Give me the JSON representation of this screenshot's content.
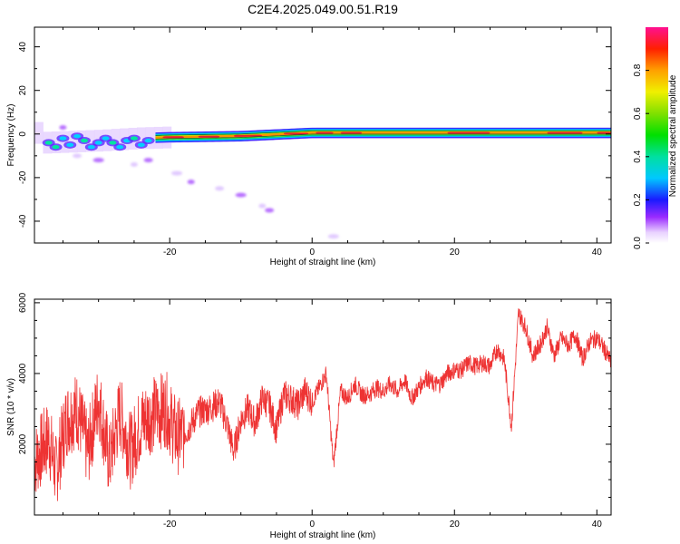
{
  "figure": {
    "title": "C2E4.2025.049.00.51.R19"
  },
  "chart_data": [
    {
      "type": "heatmap",
      "xlabel": "Height of straight line (km)",
      "ylabel": "Frequency (Hz)",
      "xlim": [
        -39,
        42
      ],
      "ylim": [
        -50,
        49
      ],
      "xticks": [
        -20,
        0,
        20,
        40
      ],
      "yticks": [
        -40,
        -20,
        0,
        20,
        40
      ],
      "colorbar": {
        "label": "Normalized spectral amplitude",
        "range": [
          0,
          1
        ],
        "ticks": [
          "0.0",
          "0.2",
          "0.4",
          "0.6",
          "0.8"
        ]
      },
      "ridge": {
        "description_points": [
          {
            "x": -38,
            "y": -4
          },
          {
            "x": -30,
            "y": -3
          },
          {
            "x": -25,
            "y": -2
          },
          {
            "x": -20,
            "y": -1.5
          },
          {
            "x": -10,
            "y": -1
          },
          {
            "x": 0,
            "y": 0.5
          },
          {
            "x": 10,
            "y": 0.5
          },
          {
            "x": 20,
            "y": 0.5
          },
          {
            "x": 30,
            "y": 0.5
          },
          {
            "x": 42,
            "y": 0.5
          }
        ]
      },
      "scattered_blobs": [
        {
          "x": -35,
          "y": 3
        },
        {
          "x": -33,
          "y": -10
        },
        {
          "x": -30,
          "y": -12
        },
        {
          "x": -25,
          "y": -14
        },
        {
          "x": -23,
          "y": -12
        },
        {
          "x": -19,
          "y": -18
        },
        {
          "x": -17,
          "y": -22
        },
        {
          "x": -13,
          "y": -25
        },
        {
          "x": -10,
          "y": -28
        },
        {
          "x": -7,
          "y": -33
        },
        {
          "x": -6,
          "y": -35
        },
        {
          "x": 3,
          "y": -47
        }
      ]
    },
    {
      "type": "line",
      "xlabel": "Height of straight line (km)",
      "ylabel": "SNR (10 * v/v)",
      "xlim": [
        -39,
        42
      ],
      "ylim": [
        0,
        6100
      ],
      "xticks": [
        -20,
        0,
        20,
        40
      ],
      "yticks": [
        2000,
        4000,
        6000
      ],
      "series": [
        {
          "color": "#ee3333",
          "x": [
            -39,
            -37,
            -36,
            -34.5,
            -33,
            -31.5,
            -30,
            -28.5,
            -27,
            -25.5,
            -24,
            -22,
            -20.5,
            -19,
            -17.5,
            -16,
            -14.5,
            -13,
            -12,
            -11,
            -10,
            -9,
            -8,
            -7,
            -6,
            -5,
            -4,
            -3,
            -2,
            -1,
            0,
            1,
            2,
            3,
            4,
            5,
            6,
            7,
            8,
            9,
            10,
            11,
            12,
            13,
            14,
            15,
            16,
            17,
            18,
            19,
            20,
            21,
            22,
            23,
            24,
            25,
            26,
            27,
            28,
            29,
            30,
            31,
            32,
            33,
            34,
            35,
            36,
            37,
            38,
            39,
            40,
            41,
            42
          ],
          "y": [
            1500,
            2200,
            1200,
            2700,
            3000,
            1800,
            3300,
            1500,
            2900,
            1800,
            2600,
            2900,
            3000,
            2200,
            2400,
            2900,
            3000,
            3200,
            2600,
            1800,
            2700,
            3000,
            2600,
            3300,
            3100,
            2400,
            3400,
            3300,
            3100,
            3500,
            3200,
            3600,
            4000,
            1400,
            3500,
            3300,
            3700,
            3400,
            3400,
            3600,
            3500,
            3700,
            3500,
            3800,
            3300,
            3600,
            3900,
            3700,
            3700,
            4000,
            4100,
            4100,
            4300,
            4200,
            4300,
            4200,
            4700,
            4400,
            2500,
            5700,
            5300,
            4500,
            4800,
            5300,
            4500,
            5000,
            4800,
            5100,
            4400,
            4900,
            5000,
            4700,
            4300
          ]
        }
      ]
    }
  ]
}
